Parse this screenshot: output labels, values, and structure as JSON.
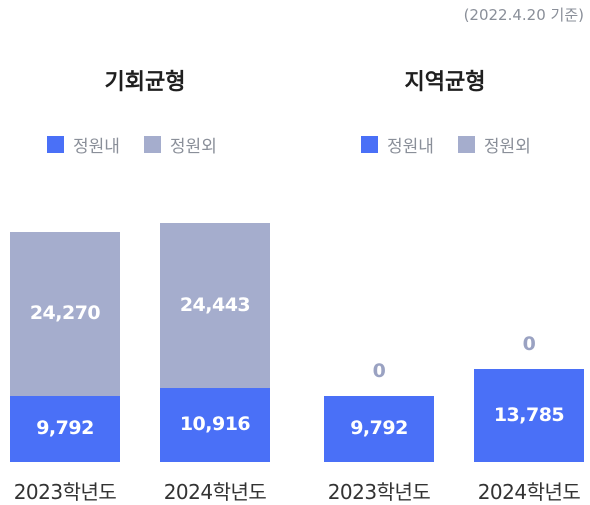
{
  "note": "(2022.4.20 기준)",
  "colors": {
    "inside": "#4a70f7",
    "outside": "#a5adcd",
    "zero_label": "#9aa2c2",
    "bar_label": "#ffffff"
  },
  "chart_data": [
    {
      "type": "bar",
      "stacked": true,
      "title": "기회균형",
      "categories": [
        "2023학년도",
        "2024학년도"
      ],
      "series": [
        {
          "name": "정원내",
          "values": [
            9792,
            10916
          ],
          "labels": [
            "9,792",
            "10,916"
          ]
        },
        {
          "name": "정원외",
          "values": [
            24270,
            24443
          ],
          "labels": [
            "24,270",
            "24,443"
          ]
        }
      ],
      "legend": "top-center",
      "grid": false
    },
    {
      "type": "bar",
      "stacked": true,
      "title": "지역균형",
      "categories": [
        "2023학년도",
        "2024학년도"
      ],
      "series": [
        {
          "name": "정원내",
          "values": [
            9792,
            13785
          ],
          "labels": [
            "9,792",
            "13,785"
          ]
        },
        {
          "name": "정원외",
          "values": [
            0,
            0
          ],
          "labels": [
            "0",
            "0"
          ]
        }
      ],
      "legend": "top-center",
      "grid": false
    }
  ]
}
